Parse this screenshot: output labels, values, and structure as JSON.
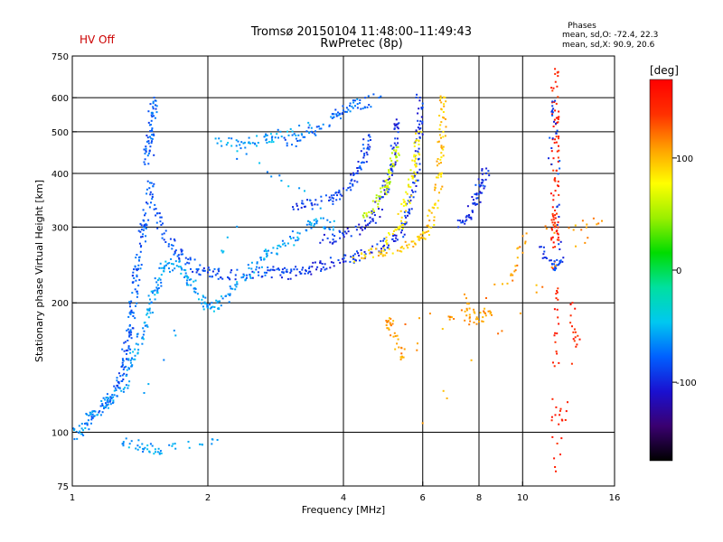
{
  "header": {
    "hv_status": "HV Off",
    "title_line1": "Tromsø 20150104 11:48:00–11:49:43",
    "title_line2": "RwPretec (8p)",
    "phase_title": "Phases",
    "phase_o": "mean, sd,O: -72.4, 22.3",
    "phase_x": "mean, sd,X:  90.9, 20.6"
  },
  "colorbar": {
    "unit_label": "[deg]",
    "ticks": [
      100,
      0,
      -100
    ],
    "range": [
      -170,
      170
    ],
    "palette": [
      "#000000",
      "#3a0070",
      "#1a10d0",
      "#0060ff",
      "#00c8f0",
      "#00e0a0",
      "#00dc00",
      "#9aef00",
      "#ffff00",
      "#ffa000",
      "#ff3000",
      "#ff0000"
    ]
  },
  "chart_data": {
    "type": "scatter",
    "xlabel": "Frequency [MHz]",
    "ylabel": "Stationary phase Virtual Height [km]",
    "x_scale": "log",
    "y_scale": "log",
    "xlim": [
      1,
      16
    ],
    "ylim": [
      75,
      750
    ],
    "x_ticks": [
      1,
      2,
      4,
      6,
      8,
      10,
      16
    ],
    "y_ticks": [
      75,
      100,
      200,
      300,
      400,
      500,
      600,
      750
    ],
    "x_gridlines": [
      2,
      4,
      6,
      8,
      10
    ],
    "y_gridlines": [
      100,
      200,
      300,
      400,
      500,
      600
    ],
    "grid": true,
    "traces": [
      {
        "name": "",
        "phase": -80,
        "points": [
          [
            1.45,
            420
          ],
          [
            1.48,
            470
          ],
          [
            1.5,
            530
          ],
          [
            1.52,
            600
          ],
          [
            1.5,
            380
          ],
          [
            1.47,
            340
          ],
          [
            1.44,
            300
          ],
          [
            1.42,
            270
          ],
          [
            1.4,
            240
          ],
          [
            1.38,
            215
          ],
          [
            1.36,
            190
          ],
          [
            1.34,
            170
          ],
          [
            1.32,
            155
          ],
          [
            1.3,
            140
          ],
          [
            1.27,
            130
          ],
          [
            1.22,
            120
          ],
          [
            1.15,
            112
          ],
          [
            1.08,
            104
          ]
        ]
      },
      {
        "name": "",
        "phase": -85,
        "points": [
          [
            1.52,
            330
          ],
          [
            1.6,
            290
          ],
          [
            1.7,
            265
          ],
          [
            1.8,
            248
          ],
          [
            1.95,
            238
          ],
          [
            2.1,
            234
          ],
          [
            2.4,
            233
          ],
          [
            2.7,
            235
          ],
          [
            3.0,
            236
          ]
        ]
      },
      {
        "name": "",
        "phase": -95,
        "points": [
          [
            2.9,
            232
          ],
          [
            3.2,
            236
          ],
          [
            3.5,
            242
          ],
          [
            3.8,
            248
          ],
          [
            4.2,
            255
          ],
          [
            4.6,
            262
          ],
          [
            5.0,
            275
          ],
          [
            5.4,
            295
          ],
          [
            5.6,
            330
          ],
          [
            5.75,
            380
          ],
          [
            5.85,
            450
          ],
          [
            5.9,
            520
          ],
          [
            5.92,
            600
          ]
        ]
      },
      {
        "name": "",
        "phase": -100,
        "points": [
          [
            3.6,
            280
          ],
          [
            4.0,
            288
          ],
          [
            4.4,
            300
          ],
          [
            4.7,
            320
          ],
          [
            4.95,
            360
          ],
          [
            5.1,
            410
          ],
          [
            5.2,
            470
          ],
          [
            5.25,
            520
          ]
        ]
      },
      {
        "name": "",
        "phase": -90,
        "points": [
          [
            3.1,
            330
          ],
          [
            3.4,
            340
          ],
          [
            3.8,
            350
          ],
          [
            4.1,
            370
          ],
          [
            4.3,
            400
          ],
          [
            4.45,
            440
          ],
          [
            4.55,
            490
          ]
        ]
      },
      {
        "name": "",
        "phase": -75,
        "points": [
          [
            3.0,
            470
          ],
          [
            3.4,
            500
          ],
          [
            3.8,
            540
          ],
          [
            4.0,
            560
          ],
          [
            4.3,
            580
          ],
          [
            4.8,
            600
          ]
        ]
      },
      {
        "name": "",
        "phase": 95,
        "points": [
          [
            4.2,
            255
          ],
          [
            4.8,
            262
          ],
          [
            5.4,
            270
          ],
          [
            5.9,
            280
          ],
          [
            6.2,
            300
          ],
          [
            6.4,
            340
          ],
          [
            6.55,
            400
          ],
          [
            6.6,
            460
          ],
          [
            6.65,
            540
          ],
          [
            6.7,
            600
          ]
        ]
      },
      {
        "name": "",
        "phase": 80,
        "points": [
          [
            5.0,
            275
          ],
          [
            5.3,
            300
          ],
          [
            5.5,
            340
          ],
          [
            5.7,
            390
          ],
          [
            5.8,
            440
          ],
          [
            5.88,
            500
          ]
        ]
      },
      {
        "name": "",
        "phase": 60,
        "points": [
          [
            4.5,
            320
          ],
          [
            4.8,
            345
          ],
          [
            5.0,
            380
          ],
          [
            5.15,
            420
          ],
          [
            5.25,
            460
          ]
        ]
      },
      {
        "name": "",
        "phase": -60,
        "points": [
          [
            1.0,
            98
          ],
          [
            1.05,
            102
          ],
          [
            1.1,
            110
          ],
          [
            1.2,
            118
          ],
          [
            1.3,
            126
          ],
          [
            1.35,
            145
          ],
          [
            1.4,
            160
          ],
          [
            1.45,
            180
          ],
          [
            1.5,
            200
          ],
          [
            1.55,
            220
          ],
          [
            1.6,
            240
          ],
          [
            1.7,
            250
          ],
          [
            1.8,
            230
          ],
          [
            1.9,
            210
          ],
          [
            2.0,
            195
          ],
          [
            2.1,
            200
          ],
          [
            2.3,
            215
          ],
          [
            2.5,
            240
          ],
          [
            2.7,
            260
          ],
          [
            2.9,
            270
          ],
          [
            3.2,
            290
          ],
          [
            3.5,
            310
          ],
          [
            3.8,
            300
          ],
          [
            2.1,
            470
          ],
          [
            2.4,
            470
          ],
          [
            2.7,
            480
          ],
          [
            2.9,
            500
          ],
          [
            3.4,
            510
          ],
          [
            1.3,
            95
          ],
          [
            1.45,
            92
          ],
          [
            1.55,
            90
          ],
          [
            2.1,
            96
          ]
        ]
      },
      {
        "name": "",
        "phase": -95,
        "points": [
          [
            7.2,
            300
          ],
          [
            7.6,
            320
          ],
          [
            7.9,
            350
          ],
          [
            8.1,
            380
          ],
          [
            8.3,
            400
          ]
        ]
      },
      {
        "name": "",
        "phase": 150,
        "points": [
          [
            11.8,
            700
          ],
          [
            11.8,
            560
          ],
          [
            11.8,
            480
          ],
          [
            11.8,
            390
          ],
          [
            11.8,
            320
          ],
          [
            11.8,
            300
          ],
          [
            11.8,
            270
          ],
          [
            11.8,
            170
          ],
          [
            11.8,
            83
          ],
          [
            13.2,
            160
          ],
          [
            12.9,
            200
          ]
        ]
      },
      {
        "name": "",
        "phase": -90,
        "points": [
          [
            11.0,
            270
          ],
          [
            11.8,
            240
          ],
          [
            12.1,
            250
          ],
          [
            11.8,
            590
          ],
          [
            11.6,
            420
          ]
        ]
      },
      {
        "name": "",
        "phase": 110,
        "points": [
          [
            7.5,
            205
          ],
          [
            7.8,
            180
          ],
          [
            8.5,
            190
          ],
          [
            5.0,
            180
          ],
          [
            5.2,
            170
          ],
          [
            5.4,
            150
          ],
          [
            9.5,
            232
          ],
          [
            10.2,
            290
          ],
          [
            15.0,
            310
          ],
          [
            6.0,
            105
          ]
        ]
      }
    ]
  }
}
